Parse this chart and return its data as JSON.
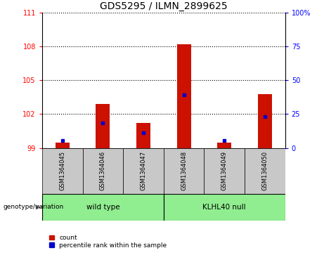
{
  "title": "GDS5295 / ILMN_2899625",
  "samples": [
    "GSM1364045",
    "GSM1364046",
    "GSM1364047",
    "GSM1364048",
    "GSM1364049",
    "GSM1364050"
  ],
  "red_bar_tops": [
    99.5,
    102.9,
    101.2,
    108.2,
    99.5,
    103.8
  ],
  "blue_marker_vals": [
    99.65,
    101.2,
    100.35,
    103.7,
    99.65,
    101.8
  ],
  "bar_base": 99.0,
  "ylim_left": [
    99,
    111
  ],
  "yticks_left": [
    99,
    102,
    105,
    108,
    111
  ],
  "yticks_right": [
    0,
    25,
    50,
    75,
    100
  ],
  "ylim_right": [
    0,
    100
  ],
  "grid_vals": [
    102,
    105,
    108,
    111
  ],
  "bar_color_red": "#CC1100",
  "bar_color_blue": "#0000CC",
  "legend_count_label": "count",
  "legend_pct_label": "percentile rank within the sample",
  "genotype_label": "genotype/variation",
  "tick_area_bg": "#C8C8C8",
  "wt_color": "#90EE90",
  "kn_color": "#90EE90",
  "title_fontsize": 10,
  "tick_fontsize": 7,
  "bar_width": 0.35
}
